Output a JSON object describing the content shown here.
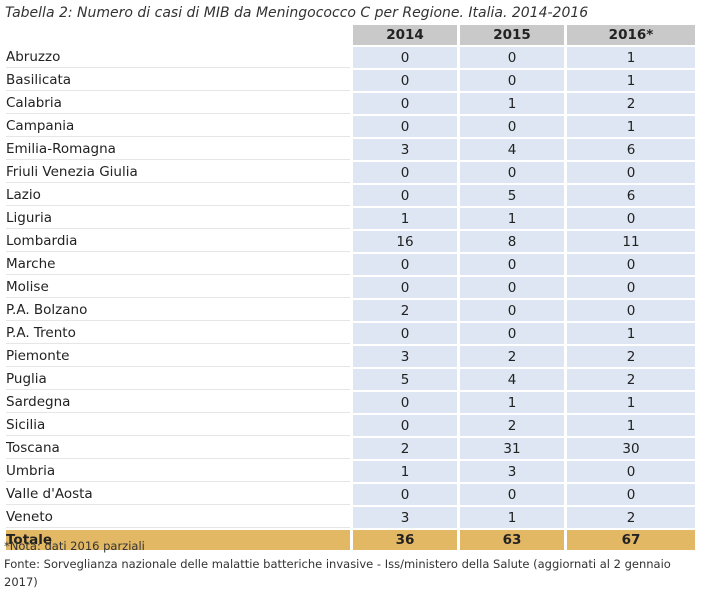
{
  "caption": "Tabella 2: Numero di casi di MIB da Meningococco C per Regione. Italia. 2014-2016",
  "headers": [
    "2014",
    "2015",
    "2016*"
  ],
  "rows": [
    {
      "region": "Abruzzo",
      "v2014": "0",
      "v2015": "0",
      "v2016": "1"
    },
    {
      "region": "Basilicata",
      "v2014": "0",
      "v2015": "0",
      "v2016": "1"
    },
    {
      "region": "Calabria",
      "v2014": "0",
      "v2015": "1",
      "v2016": "2"
    },
    {
      "region": "Campania",
      "v2014": "0",
      "v2015": "0",
      "v2016": "1"
    },
    {
      "region": "Emilia-Romagna",
      "v2014": "3",
      "v2015": "4",
      "v2016": "6"
    },
    {
      "region": "Friuli Venezia Giulia",
      "v2014": "0",
      "v2015": "0",
      "v2016": "0"
    },
    {
      "region": "Lazio",
      "v2014": "0",
      "v2015": "5",
      "v2016": "6"
    },
    {
      "region": "Liguria",
      "v2014": "1",
      "v2015": "1",
      "v2016": "0"
    },
    {
      "region": "Lombardia",
      "v2014": "16",
      "v2015": "8",
      "v2016": "11"
    },
    {
      "region": "Marche",
      "v2014": "0",
      "v2015": "0",
      "v2016": "0"
    },
    {
      "region": "Molise",
      "v2014": "0",
      "v2015": "0",
      "v2016": "0"
    },
    {
      "region": "P.A. Bolzano",
      "v2014": "2",
      "v2015": "0",
      "v2016": "0"
    },
    {
      "region": "P.A. Trento",
      "v2014": "0",
      "v2015": "0",
      "v2016": "1"
    },
    {
      "region": "Piemonte",
      "v2014": "3",
      "v2015": "2",
      "v2016": "2"
    },
    {
      "region": "Puglia",
      "v2014": "5",
      "v2015": "4",
      "v2016": "2"
    },
    {
      "region": "Sardegna",
      "v2014": "0",
      "v2015": "1",
      "v2016": "1"
    },
    {
      "region": "Sicilia",
      "v2014": "0",
      "v2015": "2",
      "v2016": "1"
    },
    {
      "region": "Toscana",
      "v2014": "2",
      "v2015": "31",
      "v2016": "30"
    },
    {
      "region": "Umbria",
      "v2014": "1",
      "v2015": "3",
      "v2016": "0"
    },
    {
      "region": "Valle d'Aosta",
      "v2014": "0",
      "v2015": "0",
      "v2016": "0"
    },
    {
      "region": "Veneto",
      "v2014": "3",
      "v2015": "1",
      "v2016": "2"
    }
  ],
  "total": {
    "label": "Totale",
    "v2014": "36",
    "v2015": "63",
    "v2016": "67"
  },
  "notes": {
    "nota": "*Nota: dati 2016 parziali",
    "fonte": "Fonte: Sorveglianza nazionale delle malattie batteriche invasive - Iss/ministero della Salute (aggiornati al 2 gennaio 2017)"
  },
  "colors": {
    "header_bg": "#c9c9c9",
    "cell_bg": "#dde6f2",
    "total_bg": "#e2b865"
  }
}
